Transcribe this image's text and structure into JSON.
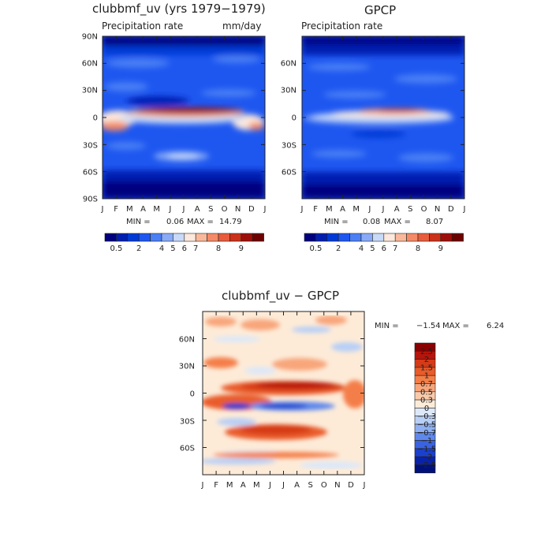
{
  "chart_data": [
    {
      "type": "heatmap",
      "panel": "model",
      "title": "clubbmf_uv (yrs 1979−1979)",
      "subtitle": "Precipitation rate",
      "units": "mm/day",
      "x_ticks": [
        "J",
        "F",
        "M",
        "A",
        "M",
        "J",
        "J",
        "A",
        "S",
        "O",
        "N",
        "D",
        "J"
      ],
      "y_ticks": [
        "90N",
        "60N",
        "30N",
        "0",
        "30S",
        "60S",
        "90S"
      ],
      "min_label": "MIN =",
      "min_value": "0.06",
      "max_label": "MAX =",
      "max_value": "14.79",
      "colorbar_labels": [
        "0.5",
        "2",
        "4",
        "5",
        "6",
        "7",
        "8",
        "9"
      ],
      "colors": [
        "#00007f",
        "#001fb0",
        "#003ad6",
        "#1e57f0",
        "#4a7ff5",
        "#88aaf7",
        "#c8daf7",
        "#fce8dc",
        "#f9b89a",
        "#f48a66",
        "#e85c3c",
        "#cc3018",
        "#9e0e08",
        "#6e0000"
      ]
    },
    {
      "type": "heatmap",
      "panel": "obs",
      "title": "GPCP",
      "subtitle": "Precipitation rate",
      "x_ticks": [
        "J",
        "F",
        "M",
        "A",
        "M",
        "J",
        "J",
        "A",
        "S",
        "O",
        "N",
        "D",
        "J"
      ],
      "y_ticks": [
        "60N",
        "30N",
        "0",
        "30S",
        "60S"
      ],
      "min_label": "MIN =",
      "min_value": "0.08",
      "max_label": "MAX =",
      "max_value": "8.07",
      "colorbar_labels": [
        "0.5",
        "2",
        "4",
        "5",
        "6",
        "7",
        "8",
        "9"
      ]
    },
    {
      "type": "heatmap",
      "panel": "difference",
      "title": "clubbmf_uv − GPCP",
      "x_ticks": [
        "J",
        "F",
        "M",
        "A",
        "M",
        "J",
        "J",
        "A",
        "S",
        "O",
        "N",
        "D",
        "J"
      ],
      "y_ticks": [
        "60N",
        "30N",
        "0",
        "30S",
        "60S"
      ],
      "min_label": "MIN =",
      "min_value": "−1.54",
      "max_label": "MAX =",
      "max_value": "6.24",
      "colorbar_labels": [
        "2.5",
        "2",
        "1.5",
        "1",
        "0.7",
        "0.5",
        "0.3",
        "0",
        "−0.3",
        "−0.5",
        "−0.7",
        "−1",
        "−1.5",
        "−2",
        "−2.5"
      ],
      "colors": [
        "#8b0000",
        "#b8140a",
        "#d63a16",
        "#e95b2a",
        "#f47e48",
        "#f8a57a",
        "#fbcaa9",
        "#fdebd8",
        "#dde8f8",
        "#b8cff6",
        "#8eb0f2",
        "#5f88ec",
        "#3a63e2",
        "#1b40cc",
        "#0a22a8",
        "#00107a"
      ]
    }
  ]
}
